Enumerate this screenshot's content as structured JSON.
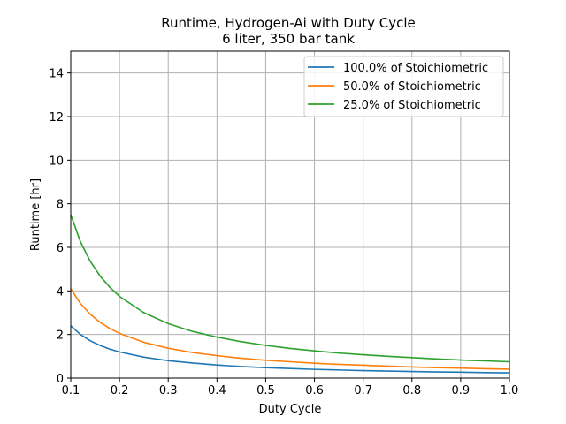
{
  "chart_data": {
    "type": "line",
    "title": "Runtime, Hydrogen-Ai with Duty Cycle",
    "subtitle": "6 liter, 350 bar tank",
    "xlabel": "Duty Cycle",
    "ylabel": "Runtime [hr]",
    "xlim": [
      0.1,
      1.0
    ],
    "ylim": [
      0,
      15
    ],
    "xticks": [
      "0.1",
      "0.2",
      "0.3",
      "0.4",
      "0.5",
      "0.6",
      "0.7",
      "0.8",
      "0.9",
      "1.0"
    ],
    "yticks": [
      "0",
      "2",
      "4",
      "6",
      "8",
      "10",
      "12",
      "14"
    ],
    "grid": true,
    "legend_position": "top-right",
    "x": [
      0.1,
      0.12,
      0.14,
      0.16,
      0.18,
      0.2,
      0.25,
      0.3,
      0.35,
      0.4,
      0.45,
      0.5,
      0.55,
      0.6,
      0.65,
      0.7,
      0.75,
      0.8,
      0.85,
      0.9,
      0.95,
      1.0
    ],
    "series": [
      {
        "name": "100.0% of Stoichiometric",
        "color": "#1f77b4",
        "values": [
          2.4,
          2.0,
          1.71,
          1.5,
          1.33,
          1.2,
          0.96,
          0.8,
          0.69,
          0.6,
          0.53,
          0.48,
          0.44,
          0.4,
          0.37,
          0.34,
          0.32,
          0.3,
          0.28,
          0.27,
          0.25,
          0.24
        ]
      },
      {
        "name": "50.0% of Stoichiometric",
        "color": "#ff7f0e",
        "values": [
          4.1,
          3.42,
          2.93,
          2.56,
          2.28,
          2.05,
          1.64,
          1.37,
          1.17,
          1.03,
          0.91,
          0.82,
          0.75,
          0.68,
          0.63,
          0.59,
          0.55,
          0.51,
          0.48,
          0.46,
          0.43,
          0.41
        ]
      },
      {
        "name": "25.0% of Stoichiometric",
        "color": "#2ca02c",
        "values": [
          7.5,
          6.25,
          5.36,
          4.69,
          4.17,
          3.75,
          3.0,
          2.5,
          2.14,
          1.88,
          1.67,
          1.5,
          1.36,
          1.25,
          1.15,
          1.07,
          1.0,
          0.94,
          0.88,
          0.83,
          0.79,
          0.75
        ]
      }
    ]
  }
}
